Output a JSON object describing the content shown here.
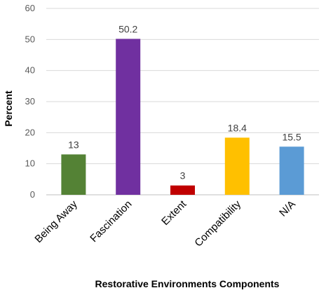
{
  "chart_data": {
    "type": "bar",
    "categories": [
      "Being Away",
      "Fascination",
      "Extent",
      "Compatibility",
      "N/A"
    ],
    "values": [
      13,
      50.2,
      3,
      18.4,
      15.5
    ],
    "value_labels": [
      "13",
      "50.2",
      "3",
      "18.4",
      "15.5"
    ],
    "colors": [
      "#548235",
      "#7030a0",
      "#c00000",
      "#ffc000",
      "#5b9bd5"
    ],
    "title": "",
    "xlabel": "Restorative Environments Components",
    "ylabel": "Percent",
    "ylim": [
      0,
      60
    ],
    "yticks": [
      0,
      10,
      20,
      30,
      40,
      50,
      60
    ],
    "grid": true,
    "legend": "none"
  }
}
